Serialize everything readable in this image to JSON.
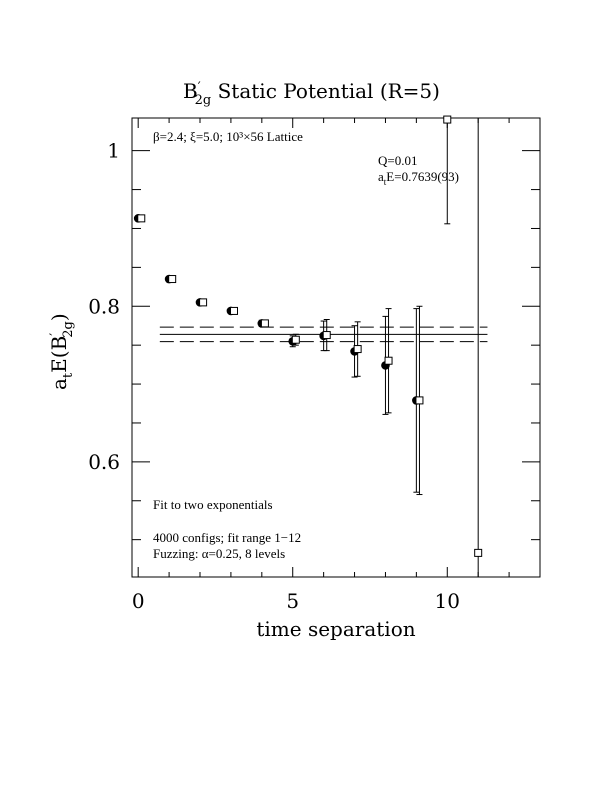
{
  "chart_data": {
    "type": "scatter",
    "title_main": "B",
    "title_prime": "′",
    "title_sub": "2g",
    "title_rest": " Static Potential (R=5)",
    "xlabel": "time separation",
    "ylabel_main": "a",
    "ylabel_t": "t",
    "ylabel_mid": "E(B",
    "ylabel_prime": "′",
    "ylabel_sub": "2g",
    "ylabel_close": ")",
    "xlim": [
      -0.2,
      13.0
    ],
    "ylim": [
      0.452,
      1.042
    ],
    "x_ticks": [
      0,
      5,
      10
    ],
    "x_tick_labels": [
      "0",
      "5",
      "10"
    ],
    "y_ticks": [
      0.6,
      0.8,
      1.0
    ],
    "y_tick_labels": [
      "0.6",
      "0.8",
      "1"
    ],
    "annotations": {
      "lattice": "β=2.4; ξ=5.0; 10³×56 Lattice",
      "q_value": "Q=0.01",
      "energy": "a",
      "energy_sub": "t",
      "energy_rest": "E=0.7639(93)",
      "fit_type": "Fit to two exponentials",
      "configs": "4000 configs; fit range 1−12",
      "fuzzing": "Fuzzing: α=0.25, 8 levels"
    },
    "fit": {
      "central": 0.7639,
      "error": 0.0093,
      "x_range": [
        0.7,
        11.3
      ]
    },
    "series": [
      {
        "marker": "filled-circle",
        "points": [
          {
            "x": 0,
            "y": 0.913,
            "err": 0.002
          },
          {
            "x": 1,
            "y": 0.835,
            "err": 0.002
          },
          {
            "x": 2,
            "y": 0.805,
            "err": 0.003
          },
          {
            "x": 3,
            "y": 0.794,
            "err": 0.003
          },
          {
            "x": 4,
            "y": 0.778,
            "err": 0.004
          },
          {
            "x": 5,
            "y": 0.755,
            "err": 0.007
          },
          {
            "x": 6,
            "y": 0.762,
            "err": 0.019
          },
          {
            "x": 7,
            "y": 0.742,
            "err": 0.033
          },
          {
            "x": 8,
            "y": 0.724,
            "err": 0.063
          },
          {
            "x": 9,
            "y": 0.679,
            "err": 0.118
          }
        ]
      },
      {
        "marker": "open-square",
        "points": [
          {
            "x": 0.1,
            "y": 0.913,
            "err": 0.002
          },
          {
            "x": 1.1,
            "y": 0.835,
            "err": 0.002
          },
          {
            "x": 2.1,
            "y": 0.805,
            "err": 0.003
          },
          {
            "x": 3.1,
            "y": 0.794,
            "err": 0.003
          },
          {
            "x": 4.1,
            "y": 0.778,
            "err": 0.004
          },
          {
            "x": 5.1,
            "y": 0.757,
            "err": 0.007
          },
          {
            "x": 6.1,
            "y": 0.763,
            "err": 0.02
          },
          {
            "x": 7.1,
            "y": 0.745,
            "err": 0.035
          },
          {
            "x": 8.1,
            "y": 0.73,
            "err": 0.067
          },
          {
            "x": 9.1,
            "y": 0.679,
            "err": 0.121
          },
          {
            "x": 10.0,
            "y": 1.04,
            "err": 0.134
          },
          {
            "x": 11.0,
            "y": 0.483,
            "err": 0.62
          }
        ]
      }
    ]
  }
}
